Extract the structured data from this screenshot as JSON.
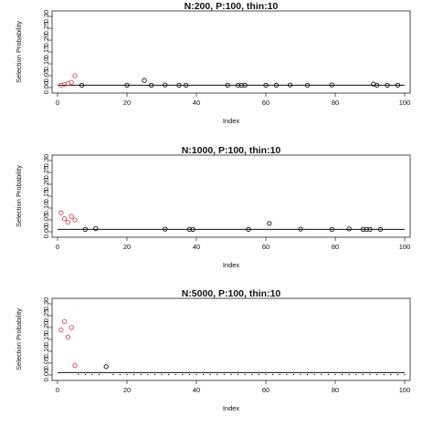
{
  "chart_data": [
    {
      "type": "scatter",
      "title": "N:200, P:100, thin:10",
      "xlabel": "Index",
      "ylabel": "Selection Probability",
      "xlim": [
        0,
        100
      ],
      "ylim": [
        0,
        0.3
      ],
      "xticks": [
        0,
        20,
        40,
        60,
        80,
        100
      ],
      "yticks": [
        0.0,
        0.05,
        0.1,
        0.15,
        0.2,
        0.25,
        0.3
      ],
      "ytick_labels": [
        "0.00",
        "0.05",
        "0.10",
        "0.15",
        "0.20",
        "0.25",
        "0.30"
      ],
      "reference_line": 0.01,
      "grid": false,
      "point_colors": {
        "signal": "#d0495a",
        "other": "#111111"
      },
      "series": [
        {
          "x": [
            1,
            2,
            3,
            4,
            5
          ],
          "y": [
            0.01,
            0.013,
            0.017,
            0.022,
            0.05
          ],
          "color": "signal"
        },
        {
          "x": [
            7,
            20,
            25,
            27,
            31,
            35,
            37,
            49,
            52,
            53,
            54,
            60,
            63,
            67,
            72,
            79,
            91,
            92,
            95,
            98
          ],
          "y": [
            0.01,
            0.01,
            0.03,
            0.01,
            0.011,
            0.01,
            0.01,
            0.01,
            0.01,
            0.01,
            0.01,
            0.01,
            0.01,
            0.011,
            0.01,
            0.011,
            0.015,
            0.01,
            0.01,
            0.01
          ],
          "color": "other"
        }
      ]
    },
    {
      "type": "scatter",
      "title": "N:1000, P:100, thin:10",
      "xlabel": "Index",
      "ylabel": "Selection Probability",
      "xlim": [
        0,
        100
      ],
      "ylim": [
        0,
        0.3
      ],
      "xticks": [
        0,
        20,
        40,
        60,
        80,
        100
      ],
      "yticks": [
        0.0,
        0.05,
        0.1,
        0.15,
        0.2,
        0.25,
        0.3
      ],
      "ytick_labels": [
        "0.00",
        "0.05",
        "0.10",
        "0.15",
        "0.20",
        "0.25",
        "0.30"
      ],
      "reference_line": 0.01,
      "grid": false,
      "point_colors": {
        "signal": "#d0495a",
        "other": "#111111"
      },
      "series": [
        {
          "x": [
            1,
            2,
            3,
            4,
            5
          ],
          "y": [
            0.08,
            0.055,
            0.04,
            0.065,
            0.05
          ],
          "color": "signal"
        },
        {
          "x": [
            8,
            11,
            31,
            38,
            39,
            55,
            61,
            70,
            79,
            84,
            88,
            89,
            90,
            93
          ],
          "y": [
            0.01,
            0.013,
            0.011,
            0.01,
            0.01,
            0.01,
            0.035,
            0.011,
            0.01,
            0.012,
            0.01,
            0.01,
            0.01,
            0.01
          ],
          "color": "other"
        }
      ]
    },
    {
      "type": "scatter",
      "title": "N:5000, P:100, thin:10",
      "xlabel": "Index",
      "ylabel": "Selection Probability",
      "xlim": [
        0,
        100
      ],
      "ylim": [
        0,
        0.3
      ],
      "xticks": [
        0,
        20,
        40,
        60,
        80,
        100
      ],
      "yticks": [
        0.0,
        0.05,
        0.1,
        0.15,
        0.2,
        0.25,
        0.3
      ],
      "ytick_labels": [
        "0.00",
        "0.05",
        "0.10",
        "0.15",
        "0.20",
        "0.25",
        "0.30"
      ],
      "reference_line": 0.01,
      "grid": false,
      "point_colors": {
        "signal": "#d0495a",
        "other": "#111111"
      },
      "series": [
        {
          "x": [
            1,
            2,
            3,
            4,
            5
          ],
          "y": [
            0.19,
            0.225,
            0.16,
            0.2,
            0.04
          ],
          "color": "signal"
        },
        {
          "x": [
            14
          ],
          "y": [
            0.035
          ],
          "color": "other"
        },
        {
          "x": [
            6,
            8,
            10,
            12,
            16,
            18,
            20,
            22,
            24,
            26,
            28,
            30,
            32,
            34,
            36,
            38,
            40,
            42,
            44,
            46,
            48,
            50,
            52,
            54,
            56,
            58,
            60,
            62,
            64,
            66,
            68,
            70,
            72,
            74,
            76,
            78,
            80,
            82,
            84,
            86,
            88,
            90,
            92,
            94,
            96,
            98,
            100
          ],
          "y": [
            0.002,
            0.002,
            0.002,
            0.002,
            0.002,
            0.002,
            0.002,
            0.002,
            0.002,
            0.002,
            0.002,
            0.002,
            0.002,
            0.002,
            0.002,
            0.002,
            0.002,
            0.002,
            0.002,
            0.002,
            0.002,
            0.002,
            0.002,
            0.002,
            0.002,
            0.002,
            0.002,
            0.002,
            0.002,
            0.002,
            0.002,
            0.002,
            0.002,
            0.002,
            0.002,
            0.002,
            0.002,
            0.002,
            0.002,
            0.002,
            0.002,
            0.002,
            0.002,
            0.002,
            0.002,
            0.002,
            0.002
          ],
          "color": "other",
          "marker": "dot"
        }
      ]
    }
  ]
}
